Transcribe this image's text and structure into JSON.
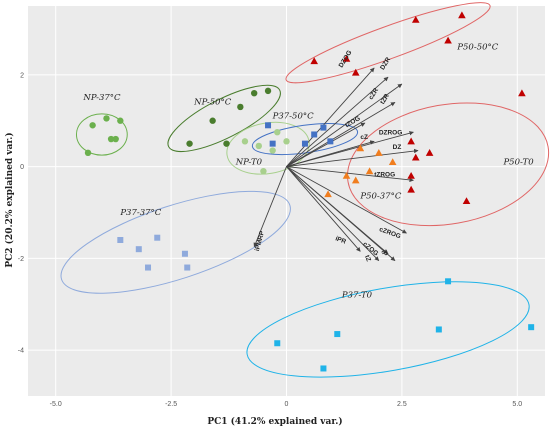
{
  "chart_data": {
    "type": "scatter",
    "xlabel": "PC1 (41.2% explained var.)",
    "ylabel": "PC2 (20.2% explained var.)",
    "xlim": [
      -5.6,
      5.6
    ],
    "ylim": [
      -5.0,
      3.5
    ],
    "xticks": [
      -5.0,
      -2.5,
      0.0,
      2.5,
      5.0
    ],
    "xtick_labels": [
      "-5.0",
      "-2.5",
      "0",
      "2.5",
      "5.0"
    ],
    "yticks": [
      2,
      0,
      -2,
      -4
    ],
    "ytick_labels": [
      "2",
      "0",
      "-2",
      "-4"
    ],
    "grid": true,
    "background": "#ebebeb",
    "groups": [
      {
        "name": "NP-37°C",
        "marker": "circle",
        "color": "#6bb04d",
        "points": [
          [
            -4.3,
            0.3
          ],
          [
            -4.2,
            0.9
          ],
          [
            -3.9,
            1.05
          ],
          [
            -3.8,
            0.6
          ],
          [
            -3.7,
            0.6
          ],
          [
            -3.6,
            1.0
          ]
        ],
        "ellipse": {
          "cx": -4.0,
          "cy": 0.7,
          "rx": 0.55,
          "ry": 0.45,
          "angle": 0,
          "color": "#6bb04d"
        },
        "label_at": [
          -4.4,
          1.45
        ]
      },
      {
        "name": "NP-50°C",
        "marker": "circle",
        "color": "#4a7d2e",
        "points": [
          [
            -2.1,
            0.5
          ],
          [
            -1.6,
            1.0
          ],
          [
            -1.3,
            0.5
          ],
          [
            -1.0,
            1.3
          ],
          [
            -0.7,
            1.6
          ],
          [
            -0.4,
            1.65
          ]
        ],
        "ellipse": {
          "cx": -1.35,
          "cy": 1.05,
          "rx": 1.35,
          "ry": 0.42,
          "angle": 27,
          "color": "#4a7d2e"
        },
        "label_at": [
          -2.0,
          1.35
        ]
      },
      {
        "name": "NP-T0",
        "marker": "circle",
        "color": "#a8d08d",
        "points": [
          [
            -0.9,
            0.55
          ],
          [
            -0.6,
            0.45
          ],
          [
            -0.3,
            0.35
          ],
          [
            -0.2,
            0.75
          ],
          [
            0.0,
            0.55
          ],
          [
            -0.5,
            -0.1
          ]
        ],
        "ellipse": {
          "cx": -0.4,
          "cy": 0.4,
          "rx": 0.9,
          "ry": 0.55,
          "angle": 10,
          "color": "#a8d08d"
        },
        "label_at": [
          -1.1,
          0.05
        ]
      },
      {
        "name": "P37-50°C",
        "marker": "square",
        "color": "#4472c4",
        "points": [
          [
            -0.4,
            0.9
          ],
          [
            -0.3,
            0.5
          ],
          [
            0.4,
            0.5
          ],
          [
            0.8,
            0.85
          ],
          [
            0.95,
            0.55
          ],
          [
            0.6,
            0.7
          ]
        ],
        "ellipse": {
          "cx": 0.4,
          "cy": 0.6,
          "rx": 1.15,
          "ry": 0.3,
          "angle": 8,
          "color": "#4472c4"
        },
        "label_at": [
          -0.3,
          1.05
        ]
      },
      {
        "name": "P37-37°C",
        "marker": "square",
        "color": "#8faadc",
        "points": [
          [
            -3.6,
            -1.6
          ],
          [
            -3.2,
            -1.8
          ],
          [
            -3.0,
            -2.2
          ],
          [
            -2.8,
            -1.55
          ],
          [
            -2.2,
            -1.9
          ],
          [
            -2.15,
            -2.2
          ]
        ],
        "ellipse": {
          "cx": -2.4,
          "cy": -1.65,
          "rx": 2.6,
          "ry": 0.8,
          "angle": 18,
          "color": "#8faadc"
        },
        "label_at": [
          -3.6,
          -1.05
        ]
      },
      {
        "name": "P37-T0",
        "marker": "square",
        "color": "#1fb3e8",
        "points": [
          [
            -0.2,
            -3.85
          ],
          [
            0.8,
            -4.4
          ],
          [
            1.1,
            -3.65
          ],
          [
            3.3,
            -3.55
          ],
          [
            3.5,
            -2.5
          ],
          [
            5.3,
            -3.5
          ]
        ],
        "ellipse": {
          "cx": 2.2,
          "cy": -3.55,
          "rx": 3.1,
          "ry": 0.9,
          "angle": 10,
          "color": "#1fb3e8"
        },
        "label_at": [
          1.2,
          -2.85
        ]
      },
      {
        "name": "P50-37°C",
        "marker": "triangle",
        "color": "#f07d1e",
        "points": [
          [
            0.9,
            -0.6
          ],
          [
            1.3,
            -0.2
          ],
          [
            1.5,
            -0.3
          ],
          [
            1.8,
            -0.1
          ],
          [
            2.0,
            0.3
          ],
          [
            1.6,
            0.4
          ],
          [
            2.3,
            0.1
          ]
        ],
        "ellipse": null,
        "label_at": [
          1.6,
          -0.7
        ]
      },
      {
        "name": "P50-50°C",
        "marker": "triangle",
        "color": "#c00000",
        "points": [
          [
            0.6,
            2.3
          ],
          [
            1.3,
            2.35
          ],
          [
            1.5,
            2.05
          ],
          [
            2.8,
            3.2
          ],
          [
            3.5,
            2.75
          ],
          [
            3.8,
            3.3
          ]
        ],
        "ellipse": {
          "cx": 2.2,
          "cy": 2.7,
          "rx": 2.35,
          "ry": 0.35,
          "angle": 20,
          "color": "#e06666"
        },
        "label_at": [
          3.7,
          2.55
        ]
      },
      {
        "name": "P50-T0",
        "marker": "triangle",
        "color": "#c00000",
        "points": [
          [
            2.7,
            0.55
          ],
          [
            2.8,
            0.2
          ],
          [
            3.1,
            0.3
          ],
          [
            2.7,
            -0.2
          ],
          [
            2.7,
            -0.5
          ],
          [
            3.9,
            -0.75
          ],
          [
            5.1,
            1.6
          ]
        ],
        "ellipse": {
          "cx": 3.5,
          "cy": 0.05,
          "rx": 2.2,
          "ry": 1.3,
          "angle": 10,
          "color": "#e06666"
        },
        "label_at": [
          4.7,
          0.05
        ]
      }
    ],
    "loadings": [
      {
        "name": "DZOG",
        "x": 1.9,
        "y": 2.15,
        "label_at": [
          1.2,
          2.15
        ],
        "rotate": -58
      },
      {
        "name": "cZR",
        "x": 2.2,
        "y": 1.95,
        "label_at": [
          1.85,
          1.45
        ],
        "rotate": -58
      },
      {
        "name": "DZR",
        "x": 2.5,
        "y": 1.8,
        "label_at": [
          2.1,
          2.1
        ],
        "rotate": -58
      },
      {
        "name": "tZR",
        "x": 2.35,
        "y": 1.4,
        "label_at": [
          2.1,
          1.35
        ],
        "rotate": -58
      },
      {
        "name": "tZOG",
        "x": 1.7,
        "y": 0.95,
        "label_at": [
          1.3,
          0.85
        ],
        "rotate": -30
      },
      {
        "name": "DZROG",
        "x": 2.75,
        "y": 0.75,
        "label_at": [
          2.0,
          0.7
        ],
        "rotate": 0
      },
      {
        "name": "cZ",
        "x": 1.9,
        "y": 0.55,
        "label_at": [
          1.6,
          0.6
        ],
        "rotate": 0
      },
      {
        "name": "DZ",
        "x": 2.85,
        "y": 0.35,
        "label_at": [
          2.3,
          0.38
        ],
        "rotate": 0
      },
      {
        "name": "tZROG",
        "x": 2.75,
        "y": -0.3,
        "label_at": [
          1.9,
          -0.22
        ],
        "rotate": 0
      },
      {
        "name": "cZROG",
        "x": 2.6,
        "y": -1.45,
        "label_at": [
          2.0,
          -1.4
        ],
        "rotate": 20
      },
      {
        "name": "iPR",
        "x": 1.6,
        "y": -1.85,
        "label_at": [
          1.05,
          -1.6
        ],
        "rotate": 20
      },
      {
        "name": "cZOG",
        "x": 2.2,
        "y": -1.9,
        "label_at": [
          1.65,
          -1.7
        ],
        "rotate": 40
      },
      {
        "name": "iP",
        "x": 2.35,
        "y": -2.05,
        "label_at": [
          2.05,
          -1.85
        ],
        "rotate": 60
      },
      {
        "name": "tZ",
        "x": 2.0,
        "y": -2.05,
        "label_at": [
          1.7,
          -1.95
        ],
        "rotate": 70
      },
      {
        "name": "iPMRP",
        "x": -0.7,
        "y": -1.75,
        "label_at": [
          -0.6,
          -1.85
        ],
        "rotate": -75
      }
    ]
  }
}
